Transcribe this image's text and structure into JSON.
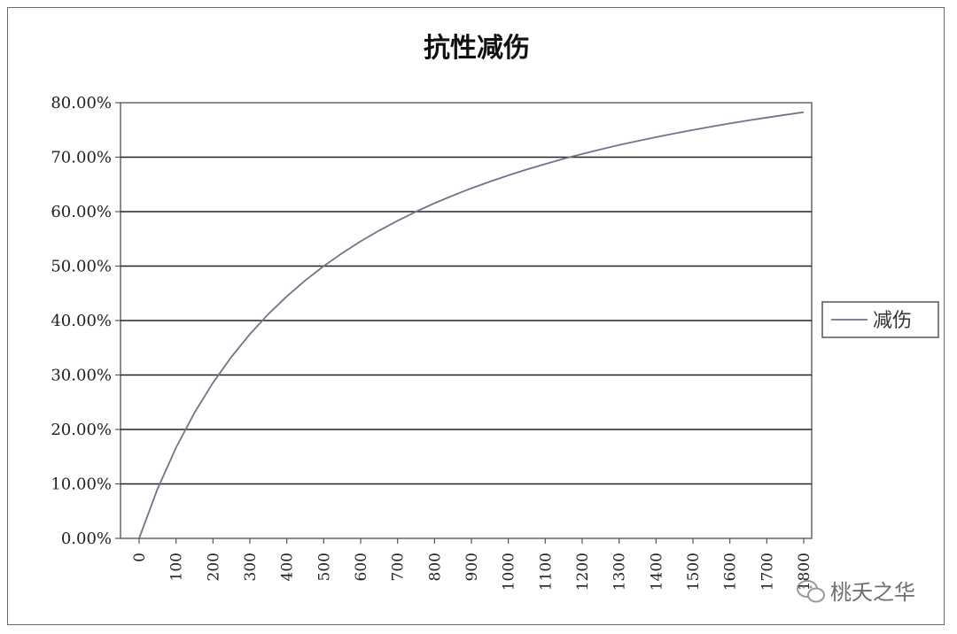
{
  "chart_data": {
    "type": "line",
    "title": "抗性减伤",
    "xlabel": "",
    "ylabel": "",
    "x_categories": [
      "0",
      "100",
      "200",
      "300",
      "400",
      "500",
      "600",
      "700",
      "800",
      "900",
      "1000",
      "1100",
      "1200",
      "1300",
      "1400",
      "1500",
      "1600",
      "1700",
      "1800"
    ],
    "y_ticks": [
      "0.00%",
      "10.00%",
      "20.00%",
      "30.00%",
      "40.00%",
      "50.00%",
      "60.00%",
      "70.00%",
      "80.00%"
    ],
    "ylim": [
      0,
      0.8
    ],
    "xlim": [
      0,
      1800
    ],
    "grid": "horizontal",
    "legend_position": "right",
    "series": [
      {
        "name": "减伤",
        "color": "#7a6f8a",
        "x": [
          0,
          50,
          100,
          150,
          200,
          250,
          300,
          350,
          400,
          450,
          500,
          550,
          600,
          650,
          700,
          750,
          800,
          850,
          900,
          950,
          1000,
          1050,
          1100,
          1150,
          1200,
          1250,
          1300,
          1350,
          1400,
          1450,
          1500,
          1550,
          1600,
          1650,
          1700,
          1750,
          1800
        ],
        "y": [
          0.0,
          0.0909,
          0.1667,
          0.2308,
          0.2857,
          0.3333,
          0.375,
          0.4118,
          0.4444,
          0.4737,
          0.5,
          0.5238,
          0.5455,
          0.5652,
          0.5833,
          0.6,
          0.6154,
          0.6296,
          0.6429,
          0.6552,
          0.6667,
          0.6774,
          0.6875,
          0.697,
          0.7059,
          0.7143,
          0.7222,
          0.7297,
          0.7368,
          0.7436,
          0.75,
          0.7561,
          0.7619,
          0.7674,
          0.7727,
          0.7778,
          0.7826
        ]
      }
    ]
  },
  "watermark": {
    "text": "桃夭之华",
    "icon": "wechat-icon"
  }
}
